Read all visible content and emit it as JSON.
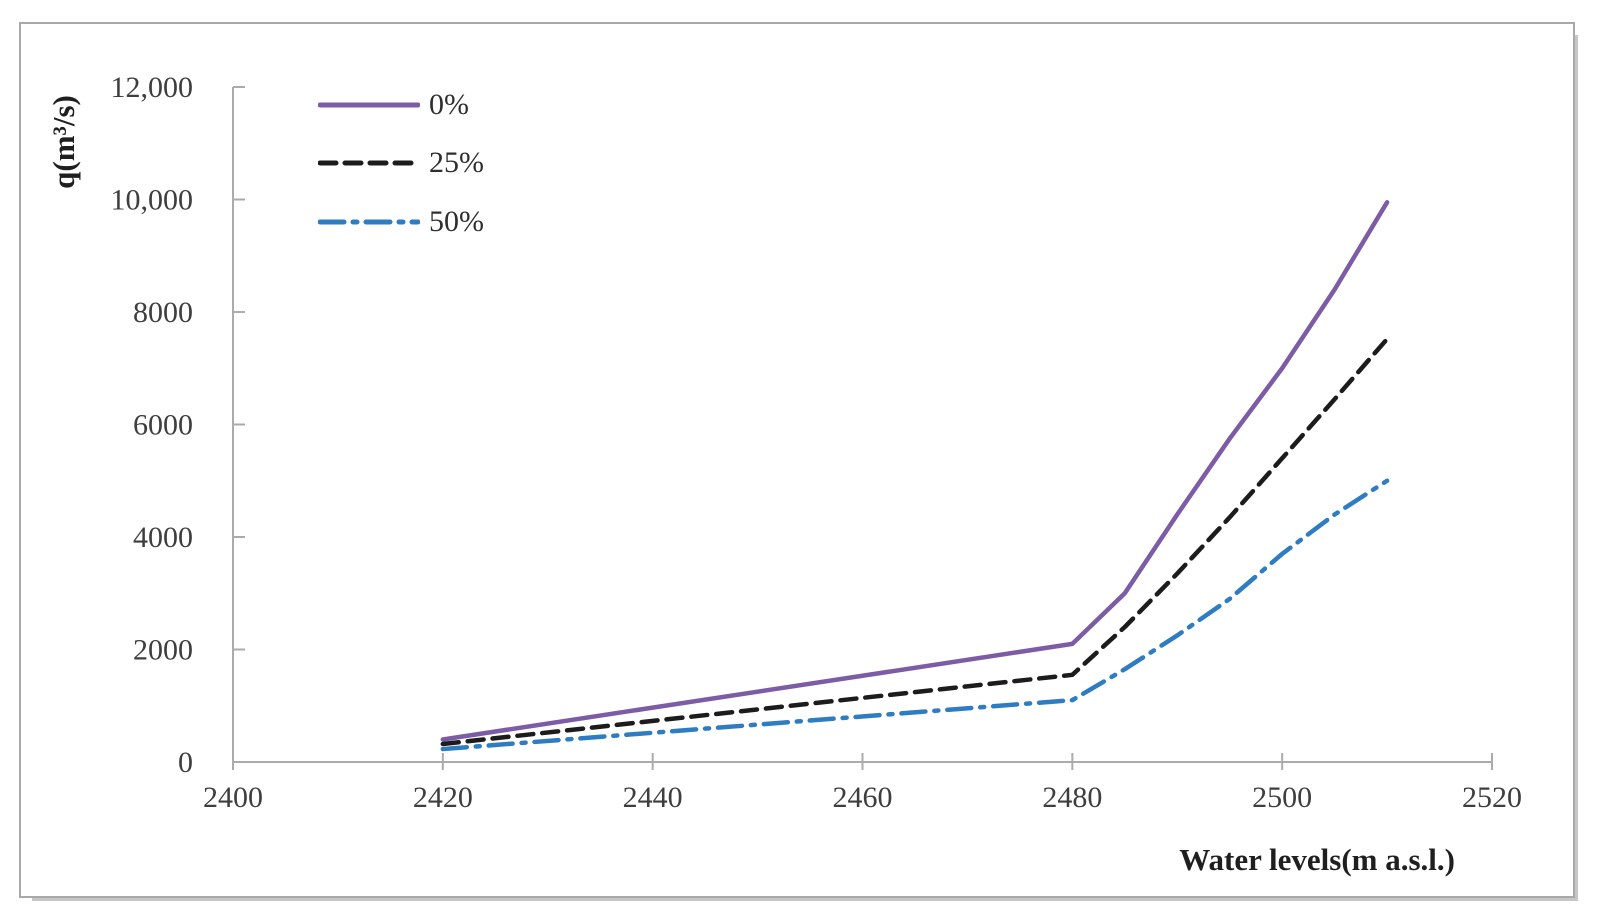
{
  "figure": {
    "background": "#FFFFFF",
    "border_color": "#A9A9A9",
    "shadow_color": "#C6C6C6"
  },
  "chart_data": {
    "type": "line",
    "title": "",
    "xlabel": "Water levels(m a.s.l.)",
    "ylabel": "q(m³/s)",
    "xlim": [
      2400,
      2520
    ],
    "ylim": [
      0,
      12000
    ],
    "grid": false,
    "legend_position": "top-left-inside",
    "axis_color": "#ABABAB",
    "tick_label_color": "#3E3E3E",
    "x_ticks": [
      {
        "value": 2400,
        "label": "2400"
      },
      {
        "value": 2420,
        "label": "2420"
      },
      {
        "value": 2440,
        "label": "2440"
      },
      {
        "value": 2460,
        "label": "2460"
      },
      {
        "value": 2480,
        "label": "2480"
      },
      {
        "value": 2500,
        "label": "2500"
      },
      {
        "value": 2520,
        "label": "2520"
      }
    ],
    "y_ticks": [
      {
        "value": 0,
        "label": "0"
      },
      {
        "value": 2000,
        "label": "2000"
      },
      {
        "value": 4000,
        "label": "4000"
      },
      {
        "value": 6000,
        "label": "6000"
      },
      {
        "value": 8000,
        "label": "8000"
      },
      {
        "value": 10000,
        "label": "10,000"
      },
      {
        "value": 12000,
        "label": "12,000"
      }
    ],
    "x": [
      2420,
      2480,
      2485,
      2490,
      2495,
      2500,
      2505,
      2510
    ],
    "series": [
      {
        "id": "0pct",
        "name": "0%",
        "color": "#7D5CA6",
        "dash": "",
        "width": 4.5,
        "values": [
          400,
          2100,
          3000,
          4400,
          5750,
          7000,
          8400,
          9950
        ]
      },
      {
        "id": "25pct",
        "name": "25%",
        "color": "#1C1C1C",
        "dash": "16 9",
        "width": 4.5,
        "values": [
          320,
          1550,
          2400,
          3350,
          4350,
          5400,
          6450,
          7520
        ]
      },
      {
        "id": "50pct",
        "name": "50%",
        "color": "#2E7CC1",
        "dash": "24 9 4 9",
        "width": 4.5,
        "values": [
          230,
          1100,
          1650,
          2250,
          2900,
          3700,
          4400,
          5000
        ]
      }
    ]
  }
}
